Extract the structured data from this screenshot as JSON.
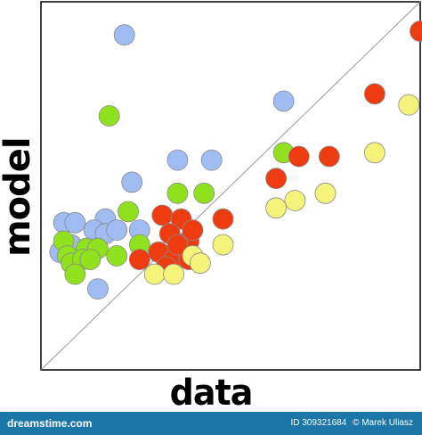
{
  "chart_data": {
    "type": "scatter",
    "xlabel": "data",
    "ylabel": "model",
    "xlim": [
      0,
      10
    ],
    "ylim": [
      0,
      10
    ],
    "grid": false,
    "identity_line": true,
    "series": [
      {
        "color": "#9fbdf3",
        "points": [
          [
            2.2,
            9.1
          ],
          [
            6.4,
            7.3
          ],
          [
            3.6,
            5.7
          ],
          [
            4.5,
            5.7
          ],
          [
            2.4,
            5.1
          ],
          [
            0.6,
            4.0
          ],
          [
            0.9,
            4.0
          ],
          [
            1.7,
            4.1
          ],
          [
            1.4,
            3.8
          ],
          [
            1.7,
            3.7
          ],
          [
            2.0,
            3.8
          ],
          [
            2.6,
            3.8
          ],
          [
            0.8,
            3.4
          ],
          [
            1.5,
            2.2
          ],
          [
            0.5,
            3.2
          ]
        ]
      },
      {
        "color": "#8fe21d",
        "points": [
          [
            1.8,
            6.9
          ],
          [
            6.4,
            5.9
          ],
          [
            3.6,
            4.8
          ],
          [
            4.3,
            4.8
          ],
          [
            2.3,
            4.3
          ],
          [
            0.6,
            3.5
          ],
          [
            0.7,
            3.1
          ],
          [
            0.8,
            2.9
          ],
          [
            1.2,
            3.3
          ],
          [
            1.5,
            3.3
          ],
          [
            1.1,
            3.0
          ],
          [
            2.0,
            3.1
          ],
          [
            0.9,
            2.6
          ],
          [
            2.6,
            3.4
          ],
          [
            1.3,
            3.0
          ]
        ]
      },
      {
        "color": "#ee3c10",
        "points": [
          [
            10.0,
            9.2
          ],
          [
            8.8,
            7.5
          ],
          [
            6.8,
            5.8
          ],
          [
            7.6,
            5.8
          ],
          [
            6.2,
            5.2
          ],
          [
            4.8,
            4.1
          ],
          [
            3.2,
            4.2
          ],
          [
            3.7,
            4.1
          ],
          [
            3.4,
            3.7
          ],
          [
            3.9,
            3.5
          ],
          [
            4.0,
            3.8
          ],
          [
            3.1,
            3.2
          ],
          [
            3.5,
            3.0
          ],
          [
            2.6,
            3.0
          ],
          [
            3.9,
            3.0
          ],
          [
            3.3,
            2.8
          ],
          [
            3.6,
            3.4
          ]
        ]
      },
      {
        "color": "#f4f37a",
        "points": [
          [
            9.7,
            7.2
          ],
          [
            8.8,
            5.9
          ],
          [
            6.7,
            4.6
          ],
          [
            7.5,
            4.8
          ],
          [
            6.2,
            4.4
          ],
          [
            4.8,
            3.4
          ],
          [
            4.0,
            3.1
          ],
          [
            3.0,
            2.6
          ],
          [
            3.5,
            2.6
          ],
          [
            4.2,
            2.9
          ]
        ]
      }
    ]
  },
  "footer": {
    "brand": "dreamstime.com",
    "id_text": "ID 309321684",
    "author": "© Marek Uliasz",
    "color": "#1c76a8"
  }
}
